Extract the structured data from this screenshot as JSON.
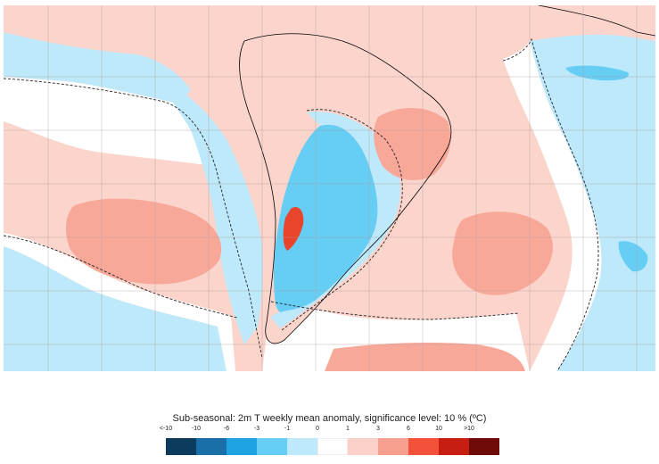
{
  "colorbar": {
    "title": "Sub-seasonal: 2m T weekly mean anomaly, significance level: 10 % (ºC)",
    "ticks": [
      "<-10",
      "-10",
      "-6",
      "-3",
      "-1",
      "0",
      "1",
      "3",
      "6",
      "10",
      ">10"
    ],
    "colors": [
      "#0d3b5e",
      "#1a6fa8",
      "#1fa3e0",
      "#66cdf5",
      "#bde9fb",
      "#ffffff",
      "#fbd0c8",
      "#f7a090",
      "#f4513a",
      "#c81e12",
      "#6e0a08"
    ]
  },
  "map_colors": {
    "ocean_base": "#fbd4cc",
    "warm": "#f8a898",
    "strong_warm": "#e8452c",
    "cold": "#bde9fb",
    "mid_cold": "#66cdf5",
    "neutral": "#ffffff",
    "coast": "#000000",
    "grid": "#b0a0a0"
  }
}
